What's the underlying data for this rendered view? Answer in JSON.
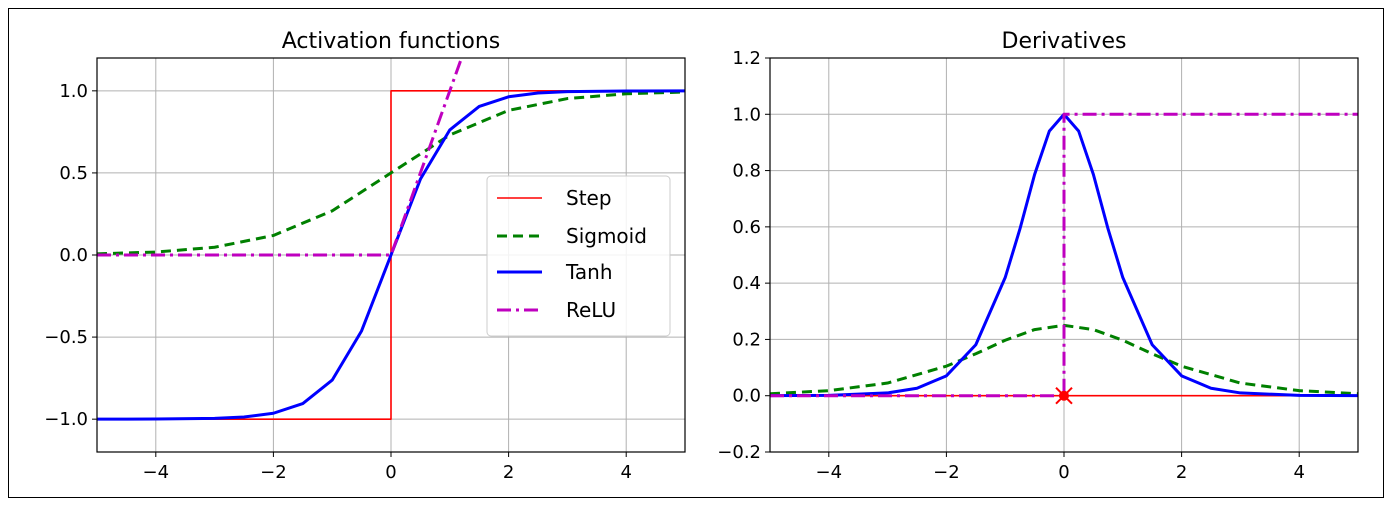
{
  "chart_data": [
    {
      "type": "line",
      "title": "Activation functions",
      "xlim": [
        -5,
        5
      ],
      "ylim": [
        -1.2,
        1.2
      ],
      "xticks": [
        -4,
        -2,
        0,
        2,
        4
      ],
      "yticks": [
        -1.0,
        -0.5,
        0.0,
        0.5,
        1.0
      ],
      "xtick_labels": [
        "−4",
        "−2",
        "0",
        "2",
        "4"
      ],
      "ytick_labels": [
        "−1.0",
        "−0.5",
        "0.0",
        "0.5",
        "1.0"
      ],
      "grid": true,
      "legend": "center-right",
      "series": [
        {
          "name": "Step",
          "color": "#ff0000",
          "style": "solid",
          "x": [
            -5,
            0,
            0,
            5
          ],
          "y": [
            -1,
            -1,
            1,
            1
          ]
        },
        {
          "name": "Sigmoid",
          "color": "#008000",
          "style": "dashed",
          "x": [
            -5,
            -4,
            -3,
            -2,
            -1,
            0,
            1,
            2,
            3,
            4,
            5
          ],
          "y": [
            0.007,
            0.018,
            0.047,
            0.119,
            0.269,
            0.5,
            0.731,
            0.881,
            0.953,
            0.982,
            0.993
          ]
        },
        {
          "name": "Tanh",
          "color": "#0000ff",
          "style": "solid",
          "x": [
            -5,
            -4,
            -3,
            -2.5,
            -2,
            -1.5,
            -1,
            -0.5,
            0,
            0.5,
            1,
            1.5,
            2,
            2.5,
            3,
            4,
            5
          ],
          "y": [
            -1.0,
            -0.999,
            -0.995,
            -0.987,
            -0.964,
            -0.905,
            -0.762,
            -0.462,
            0,
            0.462,
            0.762,
            0.905,
            0.964,
            0.987,
            0.995,
            0.999,
            1.0
          ]
        },
        {
          "name": "ReLU",
          "color": "#bf00bf",
          "style": "dashdot",
          "x": [
            -5,
            0,
            1.2
          ],
          "y": [
            0,
            0,
            1.2
          ]
        }
      ]
    },
    {
      "type": "line",
      "title": "Derivatives",
      "xlim": [
        -5,
        5
      ],
      "ylim": [
        -0.2,
        1.2
      ],
      "xticks": [
        -4,
        -2,
        0,
        2,
        4
      ],
      "yticks": [
        -0.2,
        0.0,
        0.2,
        0.4,
        0.6,
        0.8,
        1.0,
        1.2
      ],
      "xtick_labels": [
        "−4",
        "−2",
        "0",
        "2",
        "4"
      ],
      "ytick_labels": [
        "−0.2",
        "0.0",
        "0.2",
        "0.4",
        "0.6",
        "0.8",
        "1.0",
        "1.2"
      ],
      "grid": true,
      "series": [
        {
          "color": "#ff0000",
          "style": "solid",
          "x": [
            -5,
            5
          ],
          "y": [
            0,
            0
          ]
        },
        {
          "color": "#008000",
          "style": "dashed",
          "x": [
            -5,
            -4,
            -3,
            -2,
            -1.5,
            -1,
            -0.5,
            0,
            0.5,
            1,
            1.5,
            2,
            3,
            4,
            5
          ],
          "y": [
            0.007,
            0.018,
            0.045,
            0.105,
            0.149,
            0.197,
            0.235,
            0.25,
            0.235,
            0.197,
            0.149,
            0.105,
            0.045,
            0.018,
            0.007
          ]
        },
        {
          "color": "#0000ff",
          "style": "solid",
          "x": [
            -5,
            -4,
            -3,
            -2.5,
            -2,
            -1.5,
            -1,
            -0.75,
            -0.5,
            -0.25,
            0,
            0.25,
            0.5,
            0.75,
            1,
            1.5,
            2,
            2.5,
            3,
            4,
            5
          ],
          "y": [
            0.0002,
            0.0013,
            0.0099,
            0.0266,
            0.0707,
            0.181,
            0.42,
            0.592,
            0.786,
            0.94,
            1.0,
            0.94,
            0.786,
            0.592,
            0.42,
            0.181,
            0.0707,
            0.0266,
            0.0099,
            0.0013,
            0.0002
          ]
        },
        {
          "color": "#bf00bf",
          "style": "dashdot",
          "x": [
            -5,
            0,
            0,
            5
          ],
          "y": [
            0,
            0,
            1,
            1
          ]
        }
      ],
      "marker": {
        "x": 0,
        "y": 0,
        "color": "#ff0000",
        "symbol": "x"
      }
    }
  ]
}
